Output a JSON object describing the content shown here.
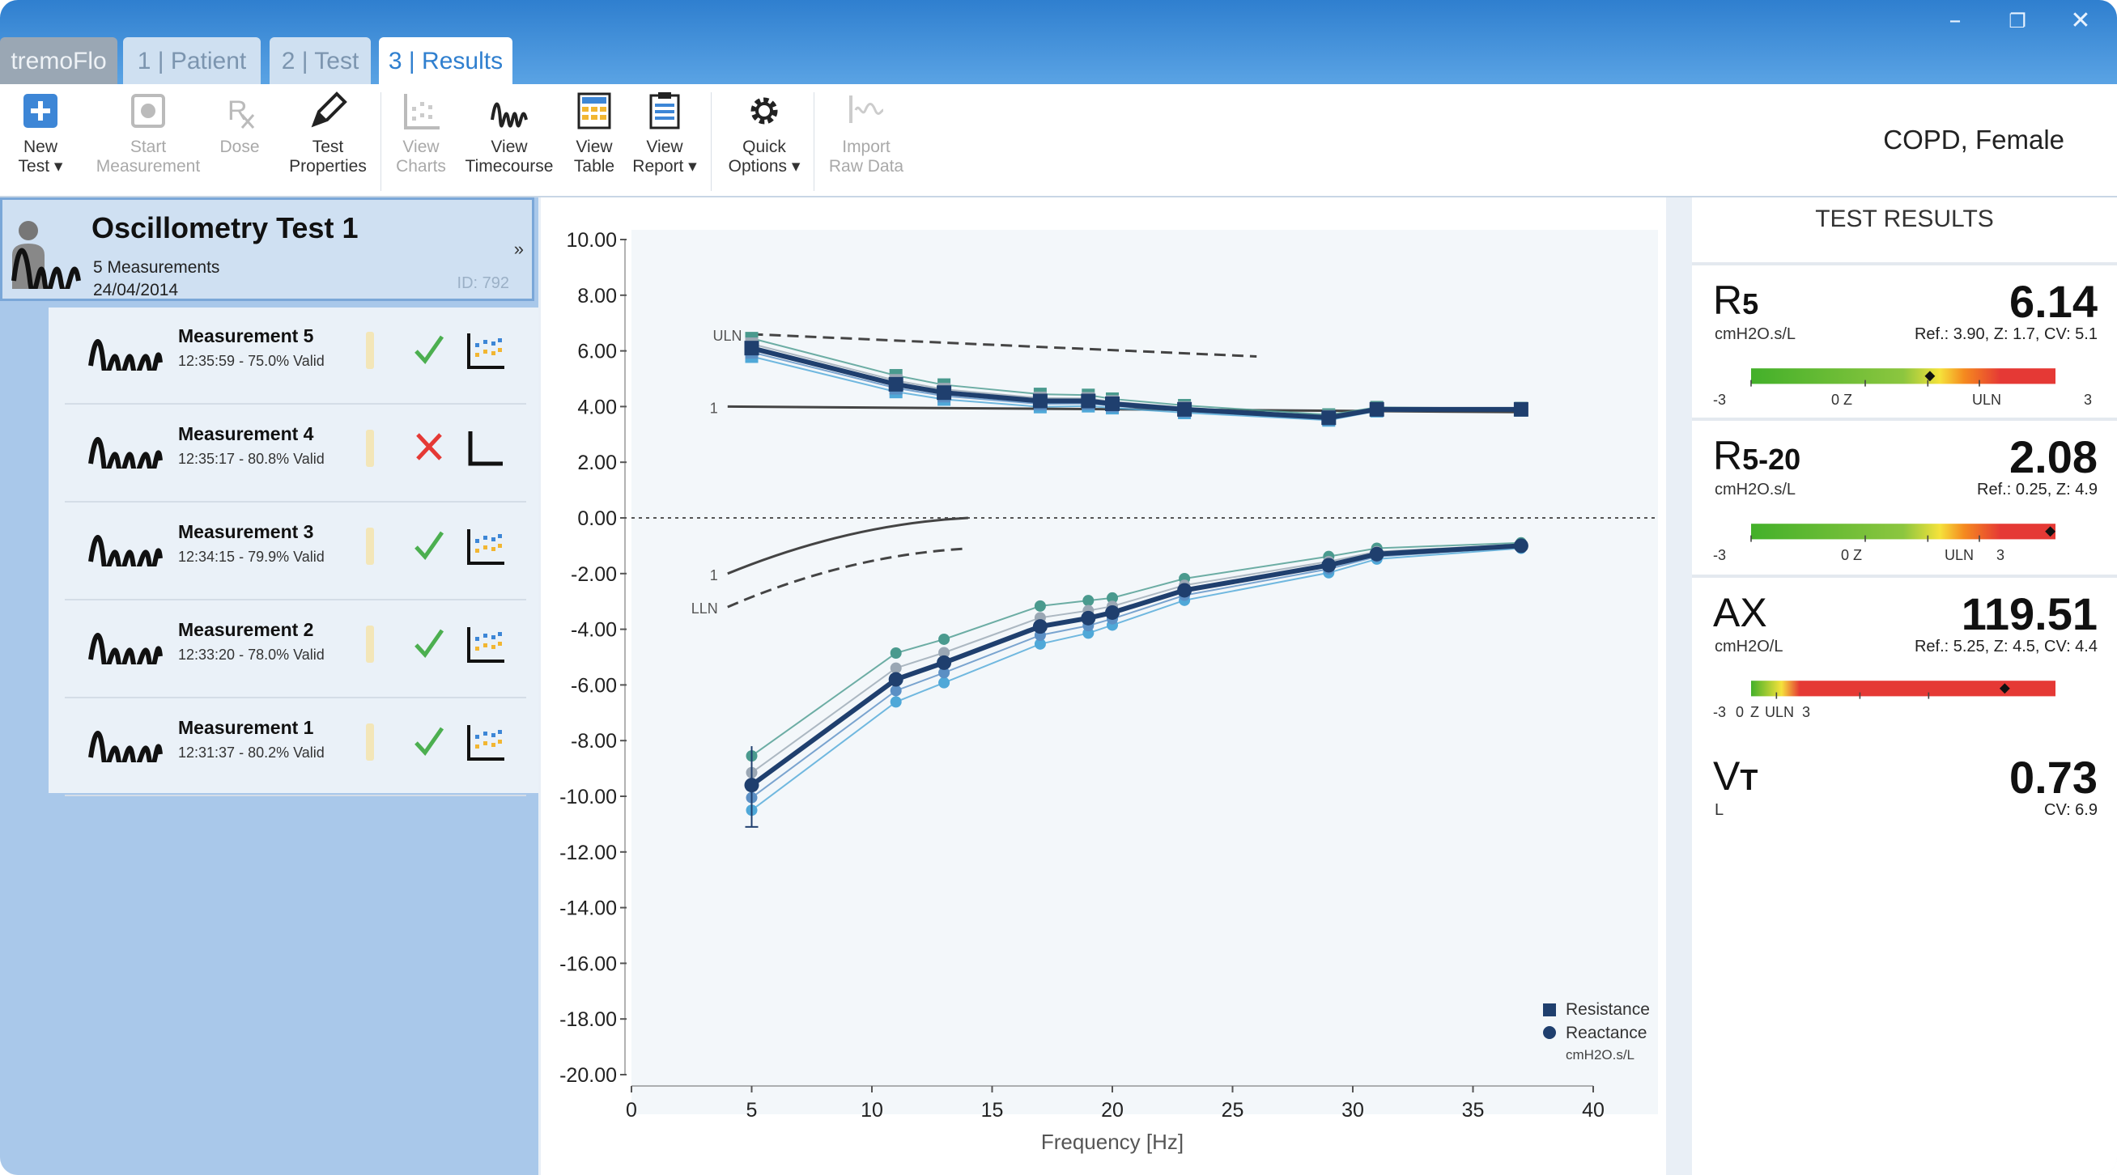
{
  "app": {
    "brand": "tremoFlo",
    "tabs": [
      "1 | Patient",
      "2 | Test",
      "3 | Results"
    ],
    "window_controls": [
      "–",
      "❐",
      "✕"
    ]
  },
  "toolbar": {
    "new_test": [
      "New",
      "Test ▾"
    ],
    "start_measurement": [
      "Start",
      "Measurement"
    ],
    "dose": [
      "Dose"
    ],
    "test_properties": [
      "Test",
      "Properties"
    ],
    "view_charts": [
      "View",
      "Charts"
    ],
    "view_timecourse": [
      "View",
      "Timecourse"
    ],
    "view_table": [
      "View",
      "Table"
    ],
    "view_report": [
      "View",
      "Report ▾"
    ],
    "quick_options": [
      "Quick",
      "Options ▾"
    ],
    "import_raw_data": [
      "Import",
      "Raw Data"
    ]
  },
  "patient_info": "COPD, Female",
  "test": {
    "title": "Oscillometry Test 1",
    "count": "5 Measurements",
    "date": "24/04/2014",
    "id": "ID: 792"
  },
  "measurements": [
    {
      "name": "Measurement 5",
      "time": "12:35:59 - 75.0% Valid",
      "status": "valid"
    },
    {
      "name": "Measurement 4",
      "time": "12:35:17 - 80.8% Valid",
      "status": "invalid"
    },
    {
      "name": "Measurement 3",
      "time": "12:34:15 - 79.9% Valid",
      "status": "valid"
    },
    {
      "name": "Measurement 2",
      "time": "12:33:20 - 78.0% Valid",
      "status": "valid"
    },
    {
      "name": "Measurement 1",
      "time": "12:31:37 - 80.2% Valid",
      "status": "valid"
    }
  ],
  "chart_data": {
    "type": "line",
    "xlabel": "Frequency [Hz]",
    "ylabel": "",
    "xlim": [
      0,
      40
    ],
    "ylim": [
      -20,
      10
    ],
    "x_ticks": [
      "0",
      "5",
      "10",
      "15",
      "20",
      "25",
      "30",
      "35",
      "40"
    ],
    "y_ticks": [
      "10.00",
      "8.00",
      "6.00",
      "4.00",
      "2.00",
      "0.00",
      "-2.00",
      "-4.00",
      "-6.00",
      "-8.00",
      "-10.00",
      "-12.00",
      "-14.00",
      "-16.00",
      "-18.00",
      "-20.00"
    ],
    "legend": [
      "Resistance",
      "Reactance",
      "cmH2O.s/L"
    ],
    "legend_position": "bottom-right",
    "x": [
      5,
      11,
      13,
      17,
      19,
      20,
      23,
      29,
      31,
      37
    ],
    "series": [
      {
        "name": "Resistance",
        "values": [
          6.1,
          4.8,
          4.5,
          4.2,
          4.2,
          4.1,
          3.9,
          3.6,
          3.9,
          3.9
        ],
        "color": "#1f3f6e"
      },
      {
        "name": "Reactance",
        "values": [
          -9.6,
          -5.8,
          -5.2,
          -3.9,
          -3.6,
          -3.4,
          -2.6,
          -1.7,
          -1.3,
          -1.0
        ],
        "color": "#1f3f6e"
      }
    ],
    "resistance_uln": {
      "label": "ULN",
      "x": [
        5,
        26
      ],
      "values": [
        6.6,
        5.8
      ]
    },
    "resistance_mean": {
      "label": "1",
      "x": [
        4,
        37
      ],
      "values": [
        4.0,
        3.8
      ]
    },
    "reactance_mean": {
      "label": "1",
      "x": [
        4,
        14
      ],
      "values": [
        -2.0,
        0.0
      ]
    },
    "reactance_lln": {
      "label": "LLN",
      "x": [
        4,
        14
      ],
      "values": [
        -3.2,
        -1.1
      ]
    }
  },
  "results": {
    "heading": "TEST RESULTS",
    "items": [
      {
        "name": "R",
        "sub": "5",
        "unit": "cmH2O.s/L",
        "value": "6.14",
        "ref": "Ref.: 3.90, Z: 1.7, CV: 5.1",
        "scale_labels": [
          "-3",
          "0 Z",
          "ULN",
          "3"
        ],
        "z": 1.7
      },
      {
        "name": "R",
        "sub": "5-20",
        "unit": "cmH2O.s/L",
        "value": "2.08",
        "ref": "Ref.: 0.25, Z: 4.9",
        "scale_labels": [
          "-3",
          "0 Z",
          "ULN",
          "3"
        ],
        "z": 4.9
      },
      {
        "name": "AX",
        "sub": "",
        "unit": "cmH2O/L",
        "value": "119.51",
        "ref": "Ref.: 5.25, Z: 4.5, CV: 4.4",
        "scale_labels": [
          "-3",
          "0",
          "Z",
          "ULN",
          "3"
        ],
        "z": 4.5
      },
      {
        "name": "V",
        "sub": "T",
        "unit": "L",
        "value": "0.73",
        "ref": "CV: 6.9"
      }
    ]
  },
  "colors": {
    "titlebar": "#2f7fcf",
    "active_tab_text": "#2f7fcf",
    "resistance": "#1f3f6e",
    "reactance": "#1f3f6e",
    "valid": "#4caf50",
    "invalid": "#e53935"
  }
}
